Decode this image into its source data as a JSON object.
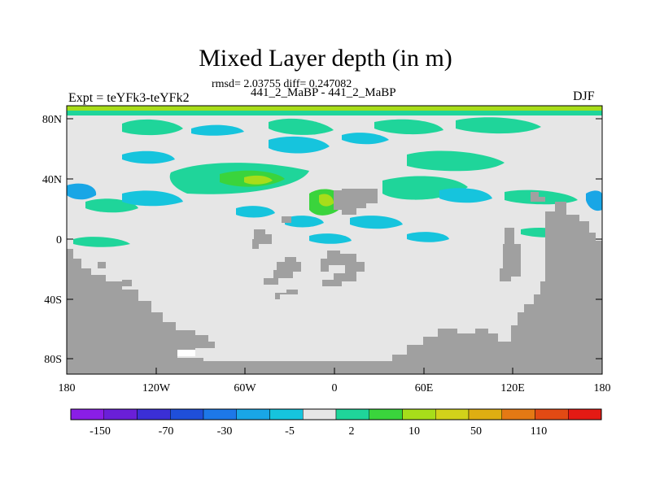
{
  "title": "Mixed Layer depth (in m)",
  "subtitle_stats": "rmsd= 2.03755 diff= 0.247082",
  "subtitle_runs": "441_2_MaBP - 441_2_MaBP",
  "left_label": "Expt = teYFk3-teYFk2",
  "right_label": "DJF",
  "lat_ticks": [
    "80N",
    "40N",
    "0",
    "40S",
    "80S"
  ],
  "lon_ticks": [
    "180",
    "120W",
    "60W",
    "0",
    "60E",
    "120E",
    "180"
  ],
  "colorbar": {
    "colors": [
      "#8a1ee6",
      "#6a1fd8",
      "#3b2fd6",
      "#1f4fd9",
      "#1d78e8",
      "#19a6e6",
      "#16c4dd",
      "#e6e6e6",
      "#1fd59a",
      "#3ad43c",
      "#a7dd1a",
      "#d2d21a",
      "#dfae12",
      "#e47914",
      "#e24a14",
      "#e41a14"
    ],
    "labels": [
      "-150",
      "-70",
      "-30",
      "-5",
      "2",
      "10",
      "50",
      "110"
    ]
  },
  "map_colors": {
    "land": "#a0a0a0",
    "background": "#e6e6e6",
    "pos_light": "#1fd59a",
    "pos_mid": "#3ad43c",
    "pos_high": "#a7dd1a",
    "neg_light": "#16c4dd",
    "neg_mid": "#19a6e6"
  }
}
